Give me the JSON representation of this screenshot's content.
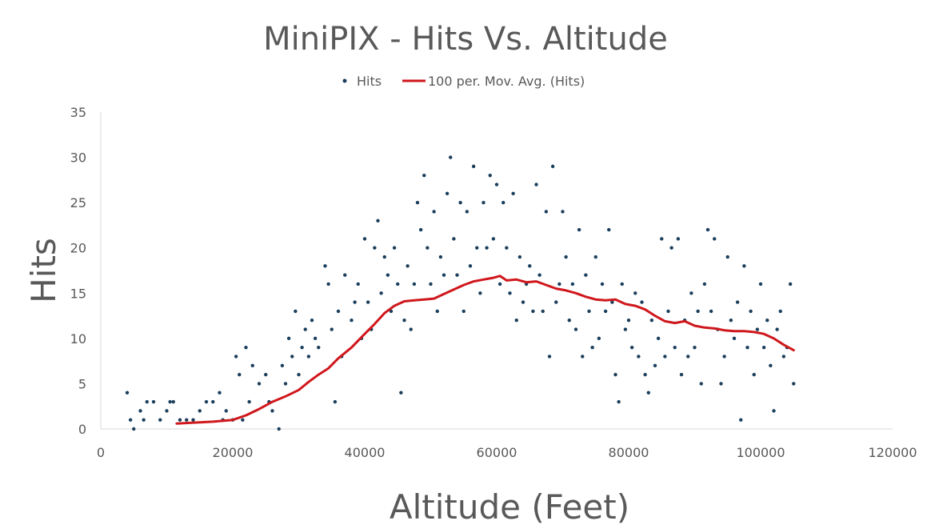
{
  "chart_data": {
    "type": "scatter",
    "title": "MiniPIX - Hits Vs. Altitude",
    "xlabel": "Altitude (Feet)",
    "ylabel": "Hits",
    "xlim": [
      0,
      120000
    ],
    "ylim": [
      0,
      35
    ],
    "x_ticks": [
      0,
      20000,
      40000,
      60000,
      80000,
      100000,
      120000
    ],
    "y_ticks": [
      0,
      5,
      10,
      15,
      20,
      25,
      30,
      35
    ],
    "grid": false,
    "legend_position": "top",
    "colors": {
      "points": "#1b3f5c",
      "trendline": "#d0171c",
      "text": "#595959",
      "axis": "#d9d9d9"
    },
    "series": [
      {
        "name": "Hits",
        "kind": "scatter",
        "points": [
          [
            4000,
            4
          ],
          [
            4500,
            1
          ],
          [
            5000,
            0
          ],
          [
            6000,
            2
          ],
          [
            6500,
            1
          ],
          [
            7000,
            3
          ],
          [
            8000,
            3
          ],
          [
            9000,
            1
          ],
          [
            10000,
            2
          ],
          [
            10500,
            3
          ],
          [
            11000,
            3
          ],
          [
            12000,
            1
          ],
          [
            13000,
            1
          ],
          [
            14000,
            1
          ],
          [
            15000,
            2
          ],
          [
            16000,
            3
          ],
          [
            17000,
            3
          ],
          [
            18000,
            4
          ],
          [
            18500,
            1
          ],
          [
            19000,
            2
          ],
          [
            20000,
            1
          ],
          [
            20500,
            8
          ],
          [
            21000,
            6
          ],
          [
            21500,
            1
          ],
          [
            22000,
            9
          ],
          [
            22500,
            3
          ],
          [
            23000,
            7
          ],
          [
            24000,
            5
          ],
          [
            25000,
            6
          ],
          [
            25500,
            3
          ],
          [
            26000,
            2
          ],
          [
            27000,
            0
          ],
          [
            27500,
            7
          ],
          [
            28000,
            5
          ],
          [
            28500,
            10
          ],
          [
            29000,
            8
          ],
          [
            29500,
            13
          ],
          [
            30000,
            6
          ],
          [
            30500,
            9
          ],
          [
            31000,
            11
          ],
          [
            31500,
            8
          ],
          [
            32000,
            12
          ],
          [
            32500,
            10
          ],
          [
            33000,
            9
          ],
          [
            34000,
            18
          ],
          [
            34500,
            16
          ],
          [
            35000,
            11
          ],
          [
            35500,
            3
          ],
          [
            36000,
            13
          ],
          [
            36500,
            8
          ],
          [
            37000,
            17
          ],
          [
            38000,
            12
          ],
          [
            38500,
            14
          ],
          [
            39000,
            16
          ],
          [
            39500,
            10
          ],
          [
            40000,
            21
          ],
          [
            40500,
            14
          ],
          [
            41000,
            11
          ],
          [
            41500,
            20
          ],
          [
            42000,
            23
          ],
          [
            42500,
            15
          ],
          [
            43000,
            19
          ],
          [
            43500,
            17
          ],
          [
            44000,
            13
          ],
          [
            44500,
            20
          ],
          [
            45000,
            16
          ],
          [
            45500,
            4
          ],
          [
            46000,
            12
          ],
          [
            46500,
            18
          ],
          [
            47000,
            11
          ],
          [
            47500,
            16
          ],
          [
            48000,
            25
          ],
          [
            48500,
            22
          ],
          [
            49000,
            28
          ],
          [
            49500,
            20
          ],
          [
            50000,
            16
          ],
          [
            50500,
            24
          ],
          [
            51000,
            13
          ],
          [
            51500,
            19
          ],
          [
            52000,
            17
          ],
          [
            52500,
            26
          ],
          [
            53000,
            30
          ],
          [
            53500,
            21
          ],
          [
            54000,
            17
          ],
          [
            54500,
            25
          ],
          [
            55000,
            13
          ],
          [
            55500,
            24
          ],
          [
            56000,
            18
          ],
          [
            56500,
            29
          ],
          [
            57000,
            20
          ],
          [
            57500,
            15
          ],
          [
            58000,
            25
          ],
          [
            58500,
            20
          ],
          [
            59000,
            28
          ],
          [
            59500,
            21
          ],
          [
            60000,
            27
          ],
          [
            60500,
            16
          ],
          [
            61000,
            25
          ],
          [
            61500,
            20
          ],
          [
            62000,
            15
          ],
          [
            62500,
            26
          ],
          [
            63000,
            12
          ],
          [
            63500,
            19
          ],
          [
            64000,
            14
          ],
          [
            64500,
            16
          ],
          [
            65000,
            18
          ],
          [
            65500,
            13
          ],
          [
            66000,
            27
          ],
          [
            66500,
            17
          ],
          [
            67000,
            13
          ],
          [
            67500,
            24
          ],
          [
            68000,
            8
          ],
          [
            68500,
            29
          ],
          [
            69000,
            14
          ],
          [
            69500,
            16
          ],
          [
            70000,
            24
          ],
          [
            70500,
            19
          ],
          [
            71000,
            12
          ],
          [
            71500,
            16
          ],
          [
            72000,
            11
          ],
          [
            72500,
            22
          ],
          [
            73000,
            8
          ],
          [
            73500,
            17
          ],
          [
            74000,
            13
          ],
          [
            74500,
            9
          ],
          [
            75000,
            19
          ],
          [
            75500,
            10
          ],
          [
            76000,
            16
          ],
          [
            76500,
            13
          ],
          [
            77000,
            22
          ],
          [
            77500,
            14
          ],
          [
            78000,
            6
          ],
          [
            78500,
            3
          ],
          [
            79000,
            16
          ],
          [
            79500,
            11
          ],
          [
            80000,
            12
          ],
          [
            80500,
            9
          ],
          [
            81000,
            15
          ],
          [
            81500,
            8
          ],
          [
            82000,
            14
          ],
          [
            82500,
            6
          ],
          [
            83000,
            4
          ],
          [
            83500,
            12
          ],
          [
            84000,
            7
          ],
          [
            84500,
            10
          ],
          [
            85000,
            21
          ],
          [
            85500,
            8
          ],
          [
            86000,
            13
          ],
          [
            86500,
            20
          ],
          [
            87000,
            9
          ],
          [
            87500,
            21
          ],
          [
            88000,
            6
          ],
          [
            88500,
            12
          ],
          [
            89000,
            8
          ],
          [
            89500,
            15
          ],
          [
            90000,
            9
          ],
          [
            90500,
            13
          ],
          [
            91000,
            5
          ],
          [
            91500,
            16
          ],
          [
            92000,
            22
          ],
          [
            92500,
            13
          ],
          [
            93000,
            21
          ],
          [
            93500,
            11
          ],
          [
            94000,
            5
          ],
          [
            94500,
            8
          ],
          [
            95000,
            19
          ],
          [
            95500,
            12
          ],
          [
            96000,
            10
          ],
          [
            96500,
            14
          ],
          [
            97000,
            1
          ],
          [
            97500,
            18
          ],
          [
            98000,
            9
          ],
          [
            98500,
            13
          ],
          [
            99000,
            6
          ],
          [
            99500,
            11
          ],
          [
            100000,
            16
          ],
          [
            100500,
            9
          ],
          [
            101000,
            12
          ],
          [
            101500,
            7
          ],
          [
            102000,
            2
          ],
          [
            102500,
            11
          ],
          [
            103000,
            13
          ],
          [
            103500,
            8
          ],
          [
            104000,
            9
          ],
          [
            104500,
            16
          ],
          [
            105000,
            5
          ]
        ]
      },
      {
        "name": "100 per. Mov. Avg. (Hits)",
        "kind": "line",
        "points": [
          [
            11500,
            0.6
          ],
          [
            14000,
            0.7
          ],
          [
            17000,
            0.8
          ],
          [
            20000,
            1.0
          ],
          [
            22000,
            1.5
          ],
          [
            24000,
            2.2
          ],
          [
            26000,
            3.0
          ],
          [
            28000,
            3.6
          ],
          [
            30000,
            4.3
          ],
          [
            31500,
            5.2
          ],
          [
            33000,
            6.0
          ],
          [
            34500,
            6.7
          ],
          [
            36000,
            7.8
          ],
          [
            38000,
            9.0
          ],
          [
            40000,
            10.5
          ],
          [
            41500,
            11.6
          ],
          [
            43000,
            12.8
          ],
          [
            44500,
            13.6
          ],
          [
            46000,
            14.1
          ],
          [
            47500,
            14.2
          ],
          [
            49000,
            14.3
          ],
          [
            50500,
            14.4
          ],
          [
            52000,
            14.9
          ],
          [
            53500,
            15.4
          ],
          [
            55000,
            15.9
          ],
          [
            56500,
            16.3
          ],
          [
            58000,
            16.5
          ],
          [
            59500,
            16.7
          ],
          [
            60500,
            16.9
          ],
          [
            61500,
            16.4
          ],
          [
            63000,
            16.5
          ],
          [
            64500,
            16.2
          ],
          [
            66000,
            16.3
          ],
          [
            67500,
            15.9
          ],
          [
            69000,
            15.5
          ],
          [
            70500,
            15.3
          ],
          [
            72000,
            15.0
          ],
          [
            73500,
            14.6
          ],
          [
            75000,
            14.3
          ],
          [
            76500,
            14.2
          ],
          [
            78000,
            14.3
          ],
          [
            79500,
            13.8
          ],
          [
            81000,
            13.6
          ],
          [
            82500,
            13.2
          ],
          [
            84000,
            12.5
          ],
          [
            85500,
            11.9
          ],
          [
            87000,
            11.7
          ],
          [
            88500,
            11.9
          ],
          [
            90000,
            11.4
          ],
          [
            91500,
            11.2
          ],
          [
            93000,
            11.1
          ],
          [
            94500,
            10.9
          ],
          [
            96000,
            10.8
          ],
          [
            97500,
            10.8
          ],
          [
            99000,
            10.7
          ],
          [
            100500,
            10.5
          ],
          [
            102000,
            10.0
          ],
          [
            103500,
            9.3
          ],
          [
            105000,
            8.7
          ]
        ]
      }
    ]
  }
}
